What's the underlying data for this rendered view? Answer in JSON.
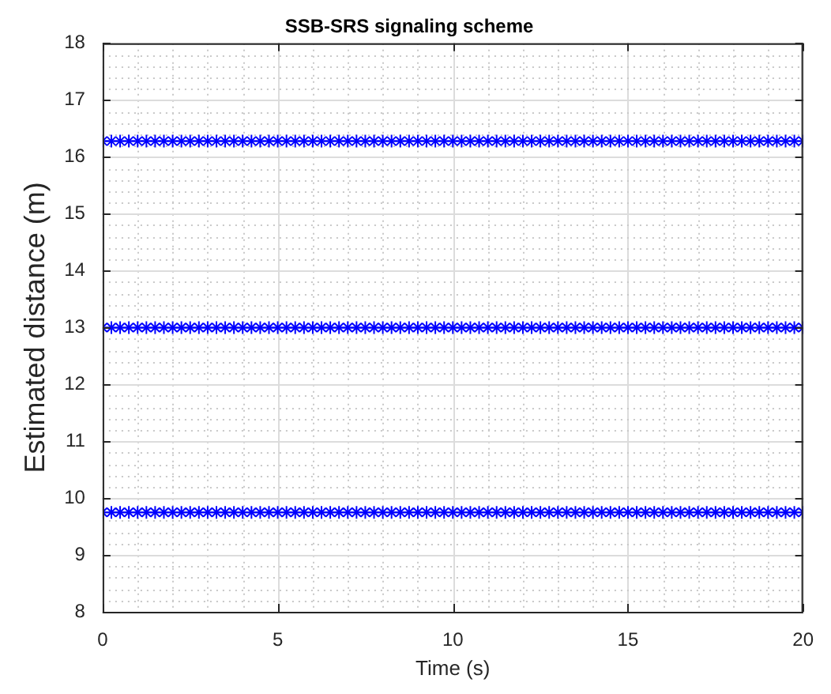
{
  "chart_data": {
    "type": "scatter",
    "title": "SSB-SRS signaling scheme",
    "xlabel": "Time (s)",
    "ylabel": "Estimated distance (m)",
    "x": [
      0,
      0.25,
      0.5,
      0.75,
      1,
      1.25,
      1.5,
      1.75,
      2,
      2.25,
      2.5,
      2.75,
      3,
      3.25,
      3.5,
      3.75,
      4,
      4.25,
      4.5,
      4.75,
      5,
      5.25,
      5.5,
      5.75,
      6,
      6.25,
      6.5,
      6.75,
      7,
      7.25,
      7.5,
      7.75,
      8,
      8.25,
      8.5,
      8.75,
      9,
      9.25,
      9.5,
      9.75,
      10,
      10.25,
      10.5,
      10.75,
      11,
      11.25,
      11.5,
      11.75,
      12,
      12.25,
      12.5,
      12.75,
      13,
      13.25,
      13.5,
      13.75,
      14,
      14.25,
      14.5,
      14.75,
      15,
      15.25,
      15.5,
      15.75,
      16,
      16.25,
      16.5,
      16.75,
      17,
      17.25,
      17.5,
      17.75,
      18,
      18.25,
      18.5,
      18.75,
      19,
      19.25,
      19.5,
      19.75,
      20
    ],
    "series": [
      {
        "color": "#0000ff",
        "values": [
          16.28,
          16.28,
          16.28,
          16.28,
          16.28,
          16.28,
          16.28,
          16.28,
          16.28,
          16.28,
          16.28,
          16.28,
          16.28,
          16.28,
          16.28,
          16.28,
          16.28,
          16.28,
          16.28,
          16.28,
          16.28,
          16.28,
          16.28,
          16.28,
          16.28,
          16.28,
          16.28,
          16.28,
          16.28,
          16.28,
          16.28,
          16.28,
          16.28,
          16.28,
          16.28,
          16.28,
          16.28,
          16.28,
          16.28,
          16.28,
          16.28,
          16.28,
          16.28,
          16.28,
          16.28,
          16.28,
          16.28,
          16.28,
          16.28,
          16.28,
          16.28,
          16.28,
          16.28,
          16.28,
          16.28,
          16.28,
          16.28,
          16.28,
          16.28,
          16.28,
          16.28,
          16.28,
          16.28,
          16.28,
          16.28,
          16.28,
          16.28,
          16.28,
          16.28,
          16.28,
          16.28,
          16.28,
          16.28,
          16.28,
          16.28,
          16.28,
          16.28,
          16.28,
          16.28,
          16.28,
          16.28
        ]
      },
      {
        "color": "#0000ff",
        "values": [
          13,
          13,
          13,
          13,
          13,
          13,
          13,
          13,
          13,
          13,
          13,
          13,
          13,
          13,
          13,
          13,
          13,
          13,
          13,
          13,
          13,
          13,
          13,
          13,
          13,
          13,
          13,
          13,
          13,
          13,
          13,
          13,
          13,
          13,
          13,
          13,
          13,
          13,
          13,
          13,
          13,
          13,
          13,
          13,
          13,
          13,
          13,
          13,
          13,
          13,
          13,
          13,
          13,
          13,
          13,
          13,
          13,
          13,
          13,
          13,
          13,
          13,
          13,
          13,
          13,
          13,
          13,
          13,
          13,
          13,
          13,
          13,
          13,
          13,
          13,
          13,
          13,
          13,
          13,
          13,
          13
        ]
      },
      {
        "color": "#0000ff",
        "values": [
          9.75,
          9.75,
          9.75,
          9.75,
          9.75,
          9.75,
          9.75,
          9.75,
          9.75,
          9.75,
          9.75,
          9.75,
          9.75,
          9.75,
          9.75,
          9.75,
          9.75,
          9.75,
          9.75,
          9.75,
          9.75,
          9.75,
          9.75,
          9.75,
          9.75,
          9.75,
          9.75,
          9.75,
          9.75,
          9.75,
          9.75,
          9.75,
          9.75,
          9.75,
          9.75,
          9.75,
          9.75,
          9.75,
          9.75,
          9.75,
          9.75,
          9.75,
          9.75,
          9.75,
          9.75,
          9.75,
          9.75,
          9.75,
          9.75,
          9.75,
          9.75,
          9.75,
          9.75,
          9.75,
          9.75,
          9.75,
          9.75,
          9.75,
          9.75,
          9.75,
          9.75,
          9.75,
          9.75,
          9.75,
          9.75,
          9.75,
          9.75,
          9.75,
          9.75,
          9.75,
          9.75,
          9.75,
          9.75,
          9.75,
          9.75,
          9.75,
          9.75,
          9.75,
          9.75,
          9.75,
          9.75
        ]
      }
    ],
    "xlim": [
      0,
      20
    ],
    "xticks": [
      0,
      {
        "value": 1,
        "label": null
      },
      {
        "value": 2,
        "label": null
      },
      {
        "value": 3,
        "label": null
      },
      {
        "value": 4,
        "label": null
      },
      5,
      {
        "value": 6,
        "label": null
      },
      {
        "value": 7,
        "label": null
      },
      {
        "value": 8,
        "label": null
      },
      {
        "value": 9,
        "label": null
      },
      10,
      {
        "value": 11,
        "label": null
      },
      {
        "value": 12,
        "label": null
      },
      {
        "value": 13,
        "label": null
      },
      {
        "value": 14,
        "label": null
      },
      15,
      {
        "value": 16,
        "label": null
      },
      {
        "value": 17,
        "label": null
      },
      {
        "value": 18,
        "label": null
      },
      {
        "value": 19,
        "label": null
      },
      20
    ],
    "ylim": [
      8,
      18
    ],
    "yticks": [
      8,
      {
        "value": 8.2,
        "label": null
      },
      {
        "value": 8.4,
        "label": null
      },
      {
        "value": 8.6,
        "label": null
      },
      {
        "value": 8.8,
        "label": null
      },
      9,
      {
        "value": 9.2,
        "label": null
      },
      {
        "value": 9.4,
        "label": null
      },
      {
        "value": 9.6,
        "label": null
      },
      {
        "value": 9.8,
        "label": null
      },
      10,
      {
        "value": 10.2,
        "label": null
      },
      {
        "value": 10.4,
        "label": null
      },
      {
        "value": 10.6,
        "label": null
      },
      {
        "value": 10.8,
        "label": null
      },
      11,
      {
        "value": 11.2,
        "label": null
      },
      {
        "value": 11.4,
        "label": null
      },
      {
        "value": 11.6,
        "label": null
      },
      {
        "value": 11.8,
        "label": null
      },
      12,
      {
        "value": 12.2,
        "label": null
      },
      {
        "value": 12.4,
        "label": null
      },
      {
        "value": 12.6,
        "label": null
      },
      {
        "value": 12.8,
        "label": null
      },
      13,
      {
        "value": 13.2,
        "label": null
      },
      {
        "value": 13.4,
        "label": null
      },
      {
        "value": 13.6,
        "label": null
      },
      {
        "value": 13.8,
        "label": null
      },
      14,
      {
        "value": 14.2,
        "label": null
      },
      {
        "value": 14.4,
        "label": null
      },
      {
        "value": 14.6,
        "label": null
      },
      {
        "value": 14.8,
        "label": null
      },
      15,
      {
        "value": 15.2,
        "label": null
      },
      {
        "value": 15.4,
        "label": null
      },
      {
        "value": 15.6,
        "label": null
      },
      {
        "value": 15.8,
        "label": null
      },
      16,
      {
        "value": 16.2,
        "label": null
      },
      {
        "value": 16.4,
        "label": null
      },
      {
        "value": 16.6,
        "label": null
      },
      {
        "value": 16.8,
        "label": null
      },
      17,
      {
        "value": 17.2,
        "label": null
      },
      {
        "value": 17.4,
        "label": null
      },
      {
        "value": 17.6,
        "label": null
      },
      {
        "value": 17.8,
        "label": null
      },
      18
    ],
    "grid": true,
    "marker": "cross"
  }
}
